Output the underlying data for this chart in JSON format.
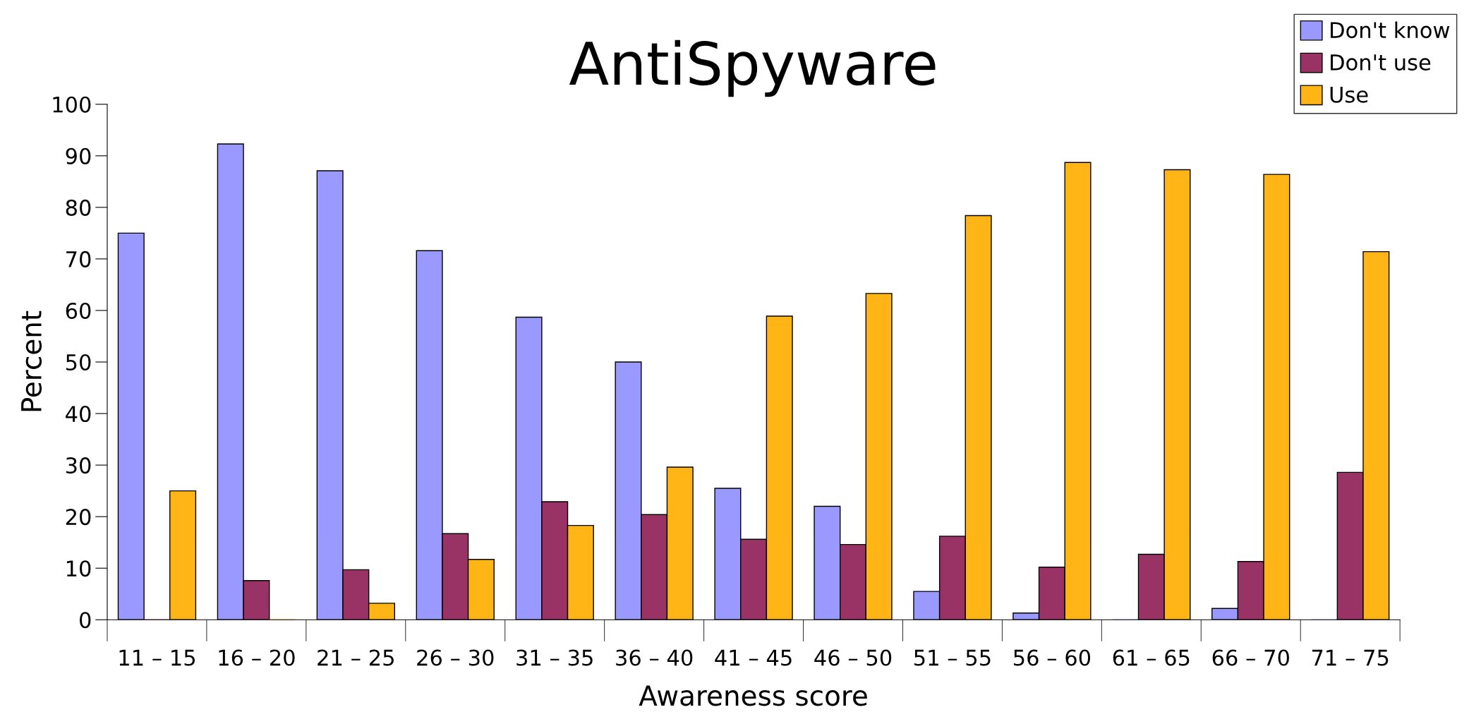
{
  "chart_data": {
    "type": "bar",
    "title": "AntiSpyware",
    "xlabel": "Awareness score",
    "ylabel": "Percent",
    "categories": [
      "11 – 15",
      "16 – 20",
      "21 – 25",
      "26 – 30",
      "31 – 35",
      "36 – 40",
      "41 – 45",
      "46 – 50",
      "51 – 55",
      "56 – 60",
      "61 – 65",
      "66 – 70",
      "71 – 75"
    ],
    "series": [
      {
        "name": "Don't know",
        "color": "#9999ff",
        "values": [
          75,
          92.3,
          87.1,
          71.6,
          58.7,
          50,
          25.5,
          22,
          5.5,
          1.3,
          0,
          2.2,
          0
        ]
      },
      {
        "name": "Don't use",
        "color": "#993366",
        "values": [
          0,
          7.6,
          9.7,
          16.7,
          22.9,
          20.4,
          15.6,
          14.6,
          16.2,
          10.2,
          12.7,
          11.3,
          28.6
        ]
      },
      {
        "name": "Use",
        "color": "#ffb516",
        "values": [
          25,
          0,
          3.2,
          11.7,
          18.3,
          29.6,
          58.9,
          63.3,
          78.4,
          88.7,
          87.3,
          86.4,
          71.4
        ]
      }
    ],
    "ylim": [
      0,
      100
    ],
    "yticks": [
      0,
      10,
      20,
      30,
      40,
      50,
      60,
      70,
      80,
      90,
      100
    ],
    "grid": false,
    "legend": "top right"
  }
}
